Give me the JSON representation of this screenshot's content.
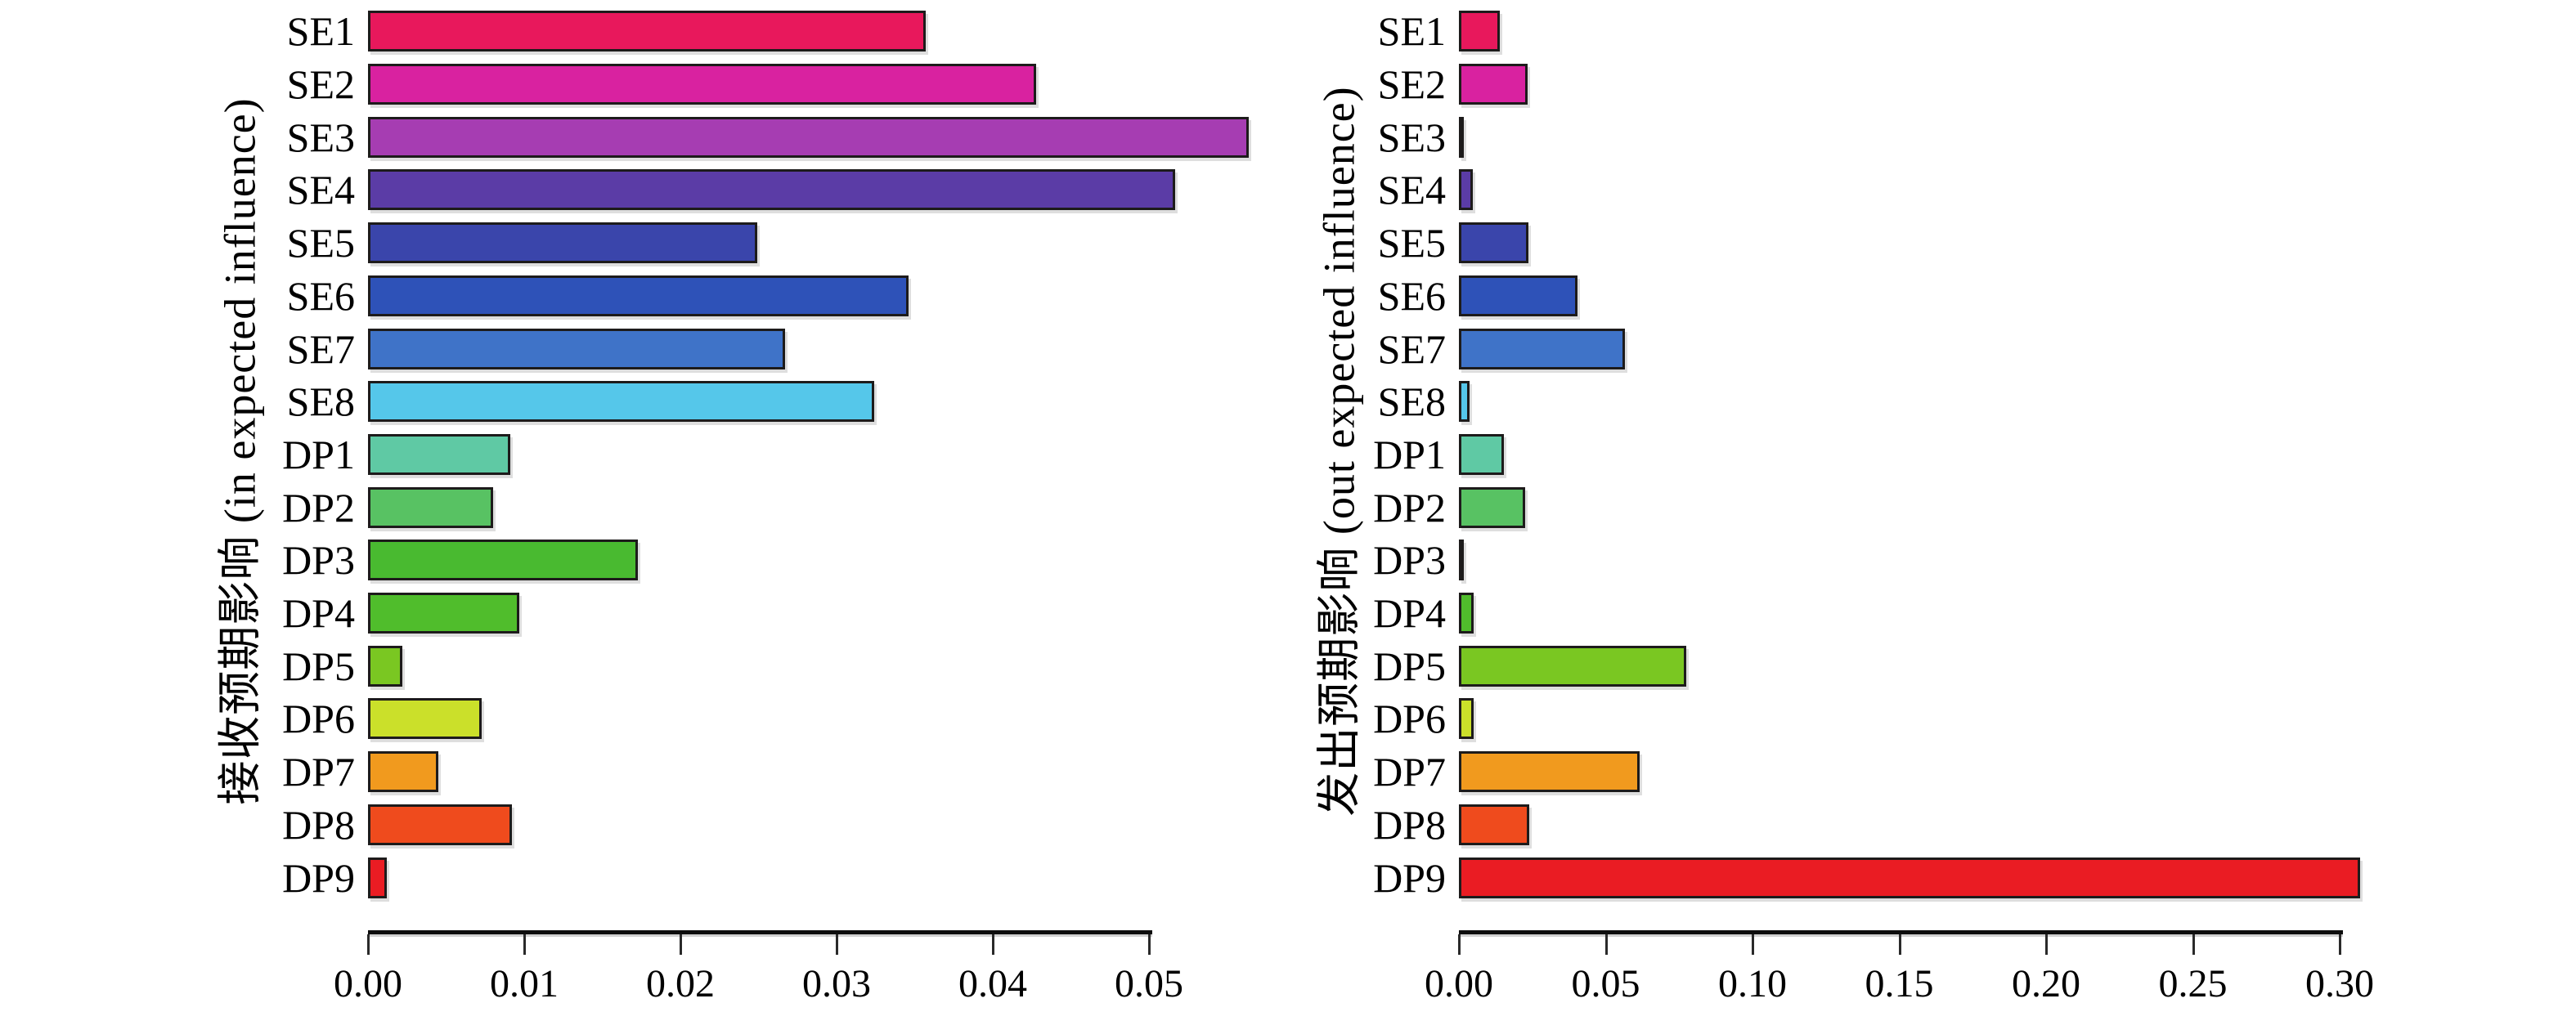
{
  "chart_data": [
    {
      "type": "bar",
      "orientation": "horizontal",
      "title": "",
      "ylabel": "接收预期影响 (in expected influence)",
      "xlabel": "",
      "categories": [
        "SE1",
        "SE2",
        "SE3",
        "SE4",
        "SE5",
        "SE6",
        "SE7",
        "SE8",
        "DP1",
        "DP2",
        "DP3",
        "DP4",
        "DP5",
        "DP6",
        "DP7",
        "DP8",
        "DP9"
      ],
      "values": [
        0.0357,
        0.0428,
        0.0564,
        0.0517,
        0.0249,
        0.0346,
        0.0267,
        0.0324,
        0.0091,
        0.008,
        0.0173,
        0.0097,
        0.0022,
        0.0073,
        0.0045,
        0.0092,
        0.0012
      ],
      "bar_colors": [
        "#E8185C",
        "#D922A0",
        "#A63DB2",
        "#5B3CA6",
        "#3A45AB",
        "#2E52B8",
        "#3F73C8",
        "#55C7EA",
        "#5FC9A4",
        "#58C263",
        "#49BA30",
        "#50BD2C",
        "#7AC722",
        "#CBE02A",
        "#F19A1E",
        "#EF4B1D",
        "#EA1C23"
      ],
      "xlim": [
        0,
        0.05
      ],
      "xticks": [
        "0.00",
        "0.01",
        "0.02",
        "0.03",
        "0.04",
        "0.05"
      ],
      "grid": false,
      "legend": null
    },
    {
      "type": "bar",
      "orientation": "horizontal",
      "title": "",
      "ylabel": "发出预期影响 (out expected influence)",
      "xlabel": "",
      "categories": [
        "SE1",
        "SE2",
        "SE3",
        "SE4",
        "SE5",
        "SE6",
        "SE7",
        "SE8",
        "DP1",
        "DP2",
        "DP3",
        "DP4",
        "DP5",
        "DP6",
        "DP7",
        "DP8",
        "DP9"
      ],
      "values": [
        0.0139,
        0.0233,
        0.0009,
        0.0048,
        0.0238,
        0.0405,
        0.0565,
        0.0037,
        0.0152,
        0.0226,
        0.0004,
        0.005,
        0.0774,
        0.005,
        0.0616,
        0.024,
        0.307
      ],
      "bar_colors": [
        "#E8185C",
        "#D922A0",
        "#A63DB2",
        "#5B3CA6",
        "#3A45AB",
        "#2E52B8",
        "#3F73C8",
        "#55C7EA",
        "#5FC9A4",
        "#58C263",
        "#49BA30",
        "#50BD2C",
        "#7AC722",
        "#CBE02A",
        "#F19A1E",
        "#EF4B1D",
        "#EA1C23"
      ],
      "xlim": [
        0,
        0.3
      ],
      "xticks": [
        "0.00",
        "0.05",
        "0.10",
        "0.15",
        "0.20",
        "0.25",
        "0.30"
      ],
      "grid": false,
      "legend": null
    }
  ]
}
